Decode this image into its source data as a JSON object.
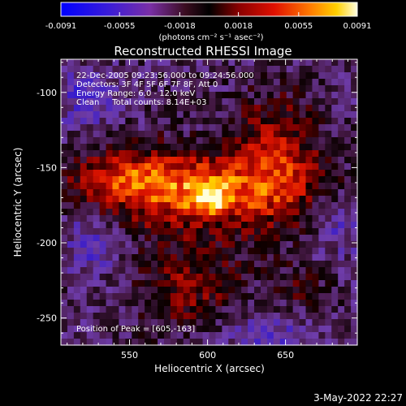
{
  "colorbar": {
    "tick_labels": [
      "-0.0091",
      "-0.0055",
      "-0.0018",
      "0.0018",
      "0.0055",
      "0.0091"
    ],
    "tick_values": [
      -0.0091,
      -0.0055,
      -0.0018,
      0.0018,
      0.0055,
      0.0091
    ],
    "range": [
      -0.0091,
      0.0091
    ],
    "unit_label": "(photons cm⁻² s⁻¹ asec⁻²)"
  },
  "image": {
    "title": "Reconstructed RHESSI Image",
    "info_lines": [
      "22-Dec-2005 09:23:56.000 to 09:24:56.000",
      "Detectors: 3F 4F 5F 6F 7F 8F, Att 0",
      "Energy Range: 6.0 - 12.0 keV",
      "Clean     Total counts: 8.14E+03"
    ],
    "peak_label": "Position of Peak = [605,-163]",
    "peak": [
      605,
      -163
    ],
    "xlabel": "Heliocentric X (arcsec)",
    "ylabel": "Heliocentric Y (arcsec)",
    "x_ticks": [
      "550",
      "600",
      "650"
    ],
    "x_tick_values": [
      550,
      600,
      650
    ],
    "y_ticks": [
      "-100",
      "-150",
      "-200",
      "-250"
    ],
    "y_tick_values": [
      -100,
      -150,
      -200,
      -250
    ],
    "xlim": [
      506,
      696
    ],
    "ylim": [
      -268,
      -78
    ]
  },
  "footer": {
    "timestamp": "3-May-2022 22:27"
  }
}
